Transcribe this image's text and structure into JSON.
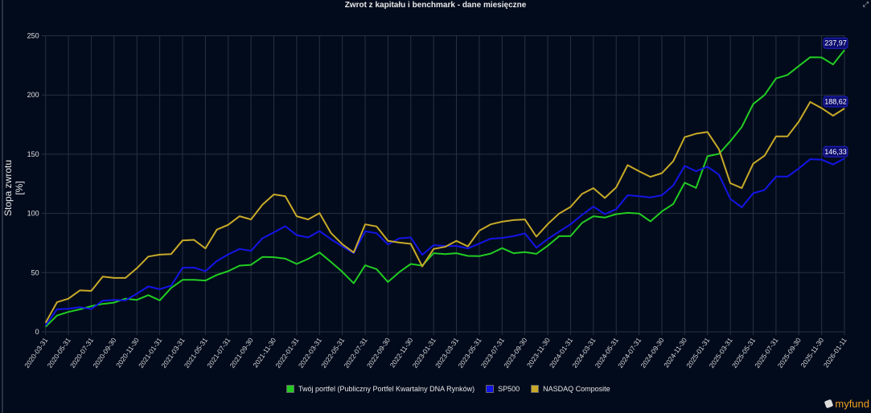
{
  "chart_data": {
    "type": "line",
    "title": "Zwrot z kapitału i benchmark - dane miesięczne",
    "xlabel": "",
    "ylabel": "Stopa zwrotu [%]",
    "ylim": [
      0,
      250
    ],
    "yticks": [
      "0",
      "50",
      "100",
      "150",
      "200",
      "250"
    ],
    "grid": true,
    "legend": "bottom",
    "x": [
      "2020-03-31",
      "2020-04-30",
      "2020-05-31",
      "2020-06-30",
      "2020-07-31",
      "2020-08-31",
      "2020-09-30",
      "2020-10-31",
      "2020-11-30",
      "2020-12-31",
      "2021-01-31",
      "2021-02-28",
      "2021-03-31",
      "2021-04-30",
      "2021-05-31",
      "2021-06-30",
      "2021-07-31",
      "2021-08-31",
      "2021-09-30",
      "2021-10-31",
      "2021-11-30",
      "2021-12-31",
      "2022-01-31",
      "2022-02-28",
      "2022-03-31",
      "2022-04-30",
      "2022-05-31",
      "2022-06-30",
      "2022-07-31",
      "2022-08-31",
      "2022-09-30",
      "2022-10-31",
      "2022-11-30",
      "2022-12-31",
      "2023-01-31",
      "2023-02-28",
      "2023-03-31",
      "2023-04-30",
      "2023-05-31",
      "2023-06-30",
      "2023-07-31",
      "2023-08-31",
      "2023-09-30",
      "2023-10-31",
      "2023-11-30",
      "2023-12-31",
      "2024-01-31",
      "2024-02-29",
      "2024-03-31",
      "2024-04-30",
      "2024-05-31",
      "2024-06-30",
      "2024-07-31",
      "2024-08-31",
      "2024-09-30",
      "2024-10-31",
      "2024-11-30",
      "2024-12-31",
      "2025-01-31",
      "2025-02-28",
      "2025-03-31",
      "2025-04-30",
      "2025-05-31",
      "2025-06-30",
      "2025-07-31",
      "2025-08-31",
      "2025-09-30",
      "2025-10-31",
      "2025-11-30",
      "2025-12-31",
      "2026-01-11"
    ],
    "tick_labels": [
      "2020-03-31",
      "2020-05-31",
      "2020-07-31",
      "2020-09-30",
      "2020-11-30",
      "2021-01-31",
      "2021-03-31",
      "2021-05-31",
      "2021-07-31",
      "2021-09-30",
      "2021-11-30",
      "2022-01-31",
      "2022-03-31",
      "2022-05-31",
      "2022-07-31",
      "2022-09-30",
      "2022-11-30",
      "2023-01-31",
      "2023-03-31",
      "2023-05-31",
      "2023-07-31",
      "2023-09-30",
      "2023-11-30",
      "2024-01-31",
      "2024-03-31",
      "2024-05-31",
      "2024-07-31",
      "2024-09-30",
      "2024-11-30",
      "2025-01-31",
      "2025-03-31",
      "2025-05-31",
      "2025-07-31",
      "2025-09-30",
      "2025-11-30",
      "2026-01-11"
    ],
    "series": [
      {
        "name": "Twój portfel (Publiczny Portfel Kwartalny DNA Rynków)",
        "color": "#22cc22",
        "end_label": "237,97",
        "values": [
          4.3,
          13.8,
          16.8,
          19,
          21.7,
          23.6,
          24.7,
          28,
          27,
          31,
          26.5,
          37.1,
          43.9,
          43.9,
          43.3,
          48,
          51.2,
          55.9,
          56.6,
          63.2,
          63,
          61.8,
          57.3,
          61.6,
          67,
          59.1,
          50.7,
          41,
          56.2,
          53,
          42.1,
          50.5,
          57.3,
          55.9,
          66.4,
          65.7,
          66.4,
          64.1,
          63.9,
          66.1,
          70.7,
          66.4,
          67.3,
          65.9,
          72.7,
          80.8,
          80.8,
          91.9,
          97.6,
          96.5,
          99.4,
          100.5,
          99.9,
          93.3,
          101.7,
          108,
          125.9,
          121.6,
          148.3,
          150.3,
          161,
          173,
          192.3,
          200,
          214,
          216.9,
          224.4,
          231.9,
          231.7,
          225.8,
          237.97
        ]
      },
      {
        "name": "SP500",
        "color": "#1414e6",
        "end_label": "146,33",
        "values": [
          5.4,
          19,
          19.5,
          20.8,
          19.3,
          26.3,
          27,
          26.5,
          32.2,
          38.3,
          36,
          39,
          54.1,
          54.3,
          51.2,
          59.8,
          65.4,
          70,
          68.4,
          79,
          84,
          89.2,
          81.7,
          79.7,
          85.1,
          78.3,
          72.2,
          66.4,
          84.9,
          83.3,
          73.8,
          79,
          79.7,
          65,
          73.2,
          72.5,
          72.5,
          70.4,
          74.5,
          78.6,
          79.3,
          80.8,
          83.1,
          71.1,
          78.3,
          84.7,
          90.8,
          98.7,
          105.8,
          99.4,
          103.5,
          115.3,
          114.6,
          113.5,
          115.3,
          123.6,
          140.1,
          135.6,
          139.5,
          132.7,
          112.3,
          105.1,
          117,
          119.8,
          131.1,
          131.1,
          137.9,
          145.8,
          145.4,
          141.3,
          146.33
        ]
      },
      {
        "name": "NASDAQ Composite",
        "color": "#c8aa28",
        "end_label": "188,62",
        "values": [
          7.7,
          25,
          28,
          35,
          34.6,
          46.6,
          45.5,
          45.5,
          53.7,
          63.6,
          65.2,
          65.7,
          77.2,
          77.7,
          70.4,
          86.3,
          90.4,
          97.6,
          94.9,
          107.3,
          116,
          114.6,
          97.6,
          94.9,
          100.3,
          83.6,
          74,
          67,
          90.8,
          89,
          76.8,
          75.4,
          74.3,
          55.2,
          70,
          71.8,
          76.8,
          72.2,
          85.4,
          90.8,
          93,
          94.4,
          94.9,
          80.4,
          91,
          99.9,
          105.5,
          116.4,
          121.4,
          113,
          122,
          140.8,
          135.6,
          130.9,
          134,
          144.2,
          164.4,
          167.3,
          168.7,
          154.2,
          125.5,
          121.4,
          142,
          148.8,
          165,
          165,
          177.5,
          194.1,
          188.9,
          182.5,
          188.62
        ]
      }
    ]
  },
  "logo_text": "myfund"
}
